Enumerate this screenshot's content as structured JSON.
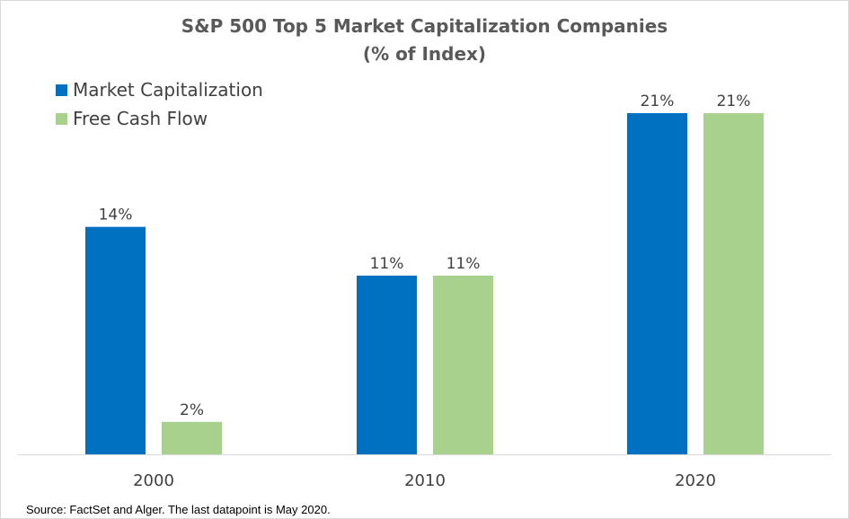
{
  "chart_data": {
    "type": "bar",
    "title": "S&P 500 Top 5 Market Capitalization Companies",
    "subtitle": "(% of Index)",
    "categories": [
      "2000",
      "2010",
      "2020"
    ],
    "series": [
      {
        "name": "Market Capitalization",
        "values": [
          14,
          11,
          21
        ],
        "labels": [
          "14%",
          "11%",
          "21%"
        ],
        "color": "#0070c0"
      },
      {
        "name": "Free Cash Flow",
        "values": [
          2,
          11,
          21
        ],
        "labels": [
          "2%",
          "11%",
          "21%"
        ],
        "color": "#a9d18e"
      }
    ],
    "ylim": [
      0,
      21
    ],
    "grid": false,
    "legend_position": "top-left"
  },
  "source": "Source: FactSet and Alger. The last datapoint is May 2020."
}
